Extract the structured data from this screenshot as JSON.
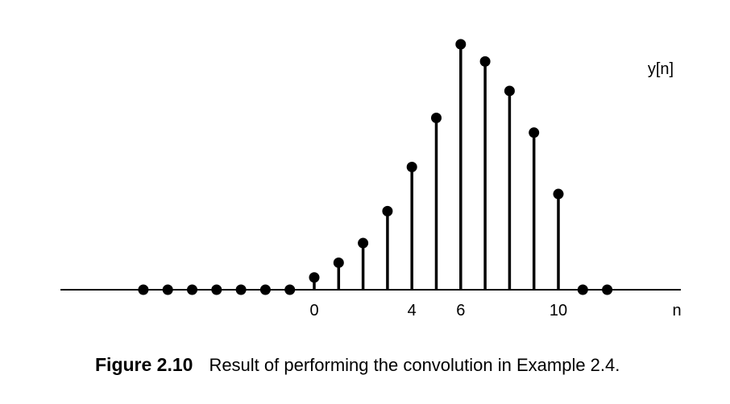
{
  "chart_data": {
    "type": "stem",
    "x": [
      -7,
      -6,
      -5,
      -4,
      -3,
      -2,
      -1,
      0,
      1,
      2,
      3,
      4,
      5,
      6,
      7,
      8,
      9,
      10,
      11,
      12
    ],
    "y": [
      0,
      0,
      0,
      0,
      0,
      0,
      0,
      0.05,
      0.11,
      0.19,
      0.32,
      0.5,
      0.7,
      1.0,
      0.93,
      0.81,
      0.64,
      0.39,
      0,
      0
    ],
    "xticks": [
      0,
      4,
      6,
      10
    ],
    "xtick_labels": [
      "0",
      "4",
      "6",
      "10"
    ],
    "xlabel": "n",
    "ylabel": "y[n]",
    "xlim": [
      -10,
      14.5
    ],
    "ylim": [
      0,
      1.0
    ],
    "grid": false
  },
  "caption": {
    "label": "Figure 2.10",
    "text": "Result of performing the convolution in Example 2.4."
  }
}
